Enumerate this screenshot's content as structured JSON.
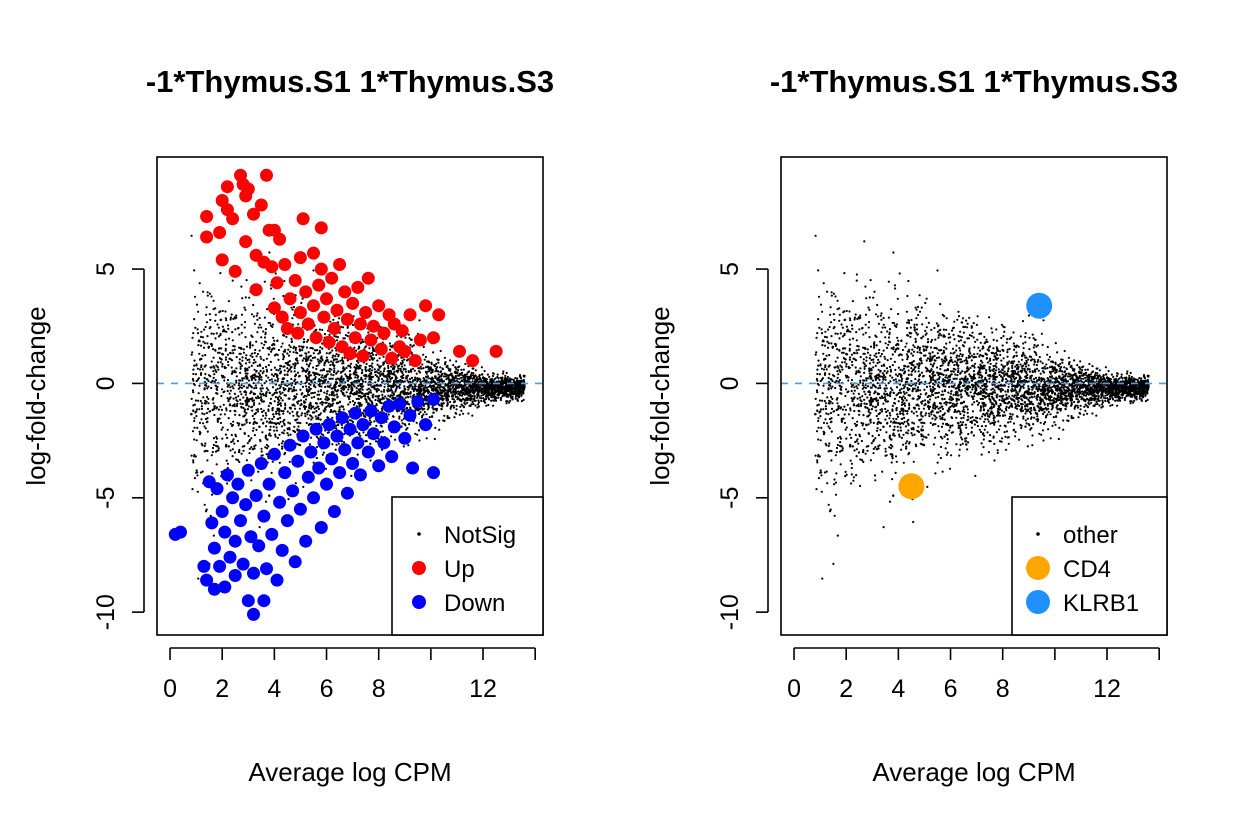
{
  "colors": {
    "notsig": "#000000",
    "up": "#ff0000",
    "down": "#0000ff",
    "cd4": "#ffa500",
    "klrb1": "#1e90ff",
    "zero_line": "#4e9ddb"
  },
  "chart_data": [
    {
      "type": "scatter",
      "title": "-1*Thymus.S1 1*Thymus.S3",
      "xlabel": "Average log CPM",
      "ylabel": "log-fold-change",
      "xlim": [
        -0.5,
        14.3
      ],
      "ylim": [
        -11.0,
        9.9
      ],
      "x_ticks": [
        0,
        2,
        4,
        6,
        8,
        10,
        12,
        14
      ],
      "x_tick_labels": [
        "0",
        "2",
        "4",
        "6",
        "8",
        "",
        "12",
        ""
      ],
      "y_ticks": [
        -10,
        -5,
        0,
        5
      ],
      "y_tick_labels": [
        "-10",
        "-5",
        "0",
        "5"
      ],
      "reference_line": {
        "y": 0,
        "style": "dashed"
      },
      "legend": {
        "position": "bottom-right",
        "entries": [
          {
            "label": "NotSig",
            "color": "#000000",
            "marker": "small-dot"
          },
          {
            "label": "Up",
            "color": "#ff0000",
            "marker": "dot"
          },
          {
            "label": "Down",
            "color": "#0000ff",
            "marker": "dot"
          }
        ]
      },
      "series": [
        {
          "name": "Up",
          "marker": "dot",
          "points": [
            [
              1.4,
              7.3
            ],
            [
              1.4,
              6.4
            ],
            [
              1.9,
              6.6
            ],
            [
              2.0,
              8.0
            ],
            [
              2.0,
              5.4
            ],
            [
              2.2,
              8.6
            ],
            [
              2.2,
              7.6
            ],
            [
              2.4,
              7.2
            ],
            [
              2.5,
              4.9
            ],
            [
              2.7,
              9.1
            ],
            [
              2.8,
              8.7
            ],
            [
              2.9,
              8.2
            ],
            [
              2.9,
              6.2
            ],
            [
              3.0,
              8.5
            ],
            [
              3.2,
              7.4
            ],
            [
              3.3,
              5.6
            ],
            [
              3.3,
              4.1
            ],
            [
              3.5,
              7.8
            ],
            [
              3.6,
              5.3
            ],
            [
              3.7,
              9.1
            ],
            [
              3.8,
              6.7
            ],
            [
              3.9,
              5.1
            ],
            [
              4.0,
              6.7
            ],
            [
              4.0,
              3.3
            ],
            [
              4.1,
              4.4
            ],
            [
              4.2,
              6.3
            ],
            [
              4.3,
              2.9
            ],
            [
              4.4,
              5.2
            ],
            [
              4.5,
              2.4
            ],
            [
              4.6,
              3.7
            ],
            [
              4.8,
              4.5
            ],
            [
              4.9,
              2.2
            ],
            [
              5.0,
              5.5
            ],
            [
              5.0,
              3.1
            ],
            [
              5.1,
              7.2
            ],
            [
              5.2,
              4.0
            ],
            [
              5.3,
              2.6
            ],
            [
              5.5,
              5.7
            ],
            [
              5.5,
              3.4
            ],
            [
              5.6,
              2.0
            ],
            [
              5.7,
              4.3
            ],
            [
              5.8,
              6.8
            ],
            [
              5.8,
              5.0
            ],
            [
              5.9,
              2.9
            ],
            [
              6.0,
              3.7
            ],
            [
              6.1,
              1.8
            ],
            [
              6.2,
              4.6
            ],
            [
              6.3,
              2.4
            ],
            [
              6.4,
              3.2
            ],
            [
              6.5,
              5.2
            ],
            [
              6.6,
              1.6
            ],
            [
              6.7,
              4.0
            ],
            [
              6.8,
              2.8
            ],
            [
              6.9,
              1.3
            ],
            [
              7.0,
              3.5
            ],
            [
              7.1,
              2.0
            ],
            [
              7.2,
              4.2
            ],
            [
              7.3,
              2.6
            ],
            [
              7.4,
              1.2
            ],
            [
              7.5,
              3.1
            ],
            [
              7.6,
              4.6
            ],
            [
              7.7,
              1.9
            ],
            [
              7.8,
              2.5
            ],
            [
              8.0,
              3.4
            ],
            [
              8.1,
              1.5
            ],
            [
              8.2,
              2.2
            ],
            [
              8.4,
              3.0
            ],
            [
              8.5,
              1.1
            ],
            [
              8.6,
              2.6
            ],
            [
              8.8,
              1.6
            ],
            [
              8.9,
              2.3
            ],
            [
              9.0,
              1.4
            ],
            [
              9.2,
              3.0
            ],
            [
              9.4,
              1.0
            ],
            [
              9.6,
              1.9
            ],
            [
              9.8,
              3.4
            ],
            [
              10.1,
              2.0
            ],
            [
              10.3,
              3.0
            ],
            [
              11.1,
              1.4
            ],
            [
              11.6,
              1.0
            ],
            [
              12.5,
              1.4
            ]
          ]
        },
        {
          "name": "Down",
          "marker": "dot",
          "points": [
            [
              0.2,
              -6.6
            ],
            [
              0.4,
              -6.5
            ],
            [
              1.3,
              -8.0
            ],
            [
              1.4,
              -8.6
            ],
            [
              1.5,
              -4.3
            ],
            [
              1.6,
              -6.1
            ],
            [
              1.7,
              -9.0
            ],
            [
              1.7,
              -7.2
            ],
            [
              1.8,
              -4.6
            ],
            [
              1.9,
              -8.0
            ],
            [
              2.0,
              -5.6
            ],
            [
              2.1,
              -6.5
            ],
            [
              2.1,
              -8.9
            ],
            [
              2.2,
              -4.0
            ],
            [
              2.3,
              -7.6
            ],
            [
              2.4,
              -5.0
            ],
            [
              2.5,
              -6.9
            ],
            [
              2.5,
              -8.4
            ],
            [
              2.6,
              -4.4
            ],
            [
              2.7,
              -6.0
            ],
            [
              2.8,
              -7.9
            ],
            [
              2.9,
              -5.3
            ],
            [
              3.0,
              -9.5
            ],
            [
              3.0,
              -3.8
            ],
            [
              3.1,
              -6.7
            ],
            [
              3.2,
              -10.1
            ],
            [
              3.2,
              -8.3
            ],
            [
              3.3,
              -4.9
            ],
            [
              3.4,
              -7.1
            ],
            [
              3.5,
              -3.5
            ],
            [
              3.6,
              -5.8
            ],
            [
              3.6,
              -9.5
            ],
            [
              3.7,
              -8.1
            ],
            [
              3.8,
              -4.4
            ],
            [
              3.9,
              -6.6
            ],
            [
              4.0,
              -3.1
            ],
            [
              4.1,
              -8.6
            ],
            [
              4.2,
              -5.2
            ],
            [
              4.3,
              -7.3
            ],
            [
              4.4,
              -3.9
            ],
            [
              4.5,
              -6.0
            ],
            [
              4.6,
              -2.7
            ],
            [
              4.7,
              -4.7
            ],
            [
              4.8,
              -7.8
            ],
            [
              4.9,
              -3.4
            ],
            [
              5.0,
              -5.5
            ],
            [
              5.1,
              -2.3
            ],
            [
              5.2,
              -6.9
            ],
            [
              5.3,
              -4.1
            ],
            [
              5.4,
              -3.0
            ],
            [
              5.5,
              -5.0
            ],
            [
              5.6,
              -2.0
            ],
            [
              5.7,
              -3.7
            ],
            [
              5.8,
              -6.3
            ],
            [
              5.9,
              -2.6
            ],
            [
              6.0,
              -4.4
            ],
            [
              6.1,
              -1.8
            ],
            [
              6.2,
              -3.3
            ],
            [
              6.3,
              -5.6
            ],
            [
              6.4,
              -2.3
            ],
            [
              6.5,
              -3.9
            ],
            [
              6.6,
              -1.5
            ],
            [
              6.7,
              -2.9
            ],
            [
              6.8,
              -4.8
            ],
            [
              6.9,
              -2.0
            ],
            [
              7.0,
              -3.5
            ],
            [
              7.1,
              -1.3
            ],
            [
              7.2,
              -2.6
            ],
            [
              7.3,
              -4.0
            ],
            [
              7.4,
              -1.8
            ],
            [
              7.6,
              -3.0
            ],
            [
              7.7,
              -1.2
            ],
            [
              7.8,
              -2.2
            ],
            [
              8.0,
              -3.6
            ],
            [
              8.1,
              -1.5
            ],
            [
              8.2,
              -2.6
            ],
            [
              8.4,
              -1.0
            ],
            [
              8.5,
              -3.2
            ],
            [
              8.6,
              -1.9
            ],
            [
              8.8,
              -0.9
            ],
            [
              9.0,
              -2.4
            ],
            [
              9.2,
              -1.4
            ],
            [
              9.3,
              -3.7
            ],
            [
              9.5,
              -0.8
            ],
            [
              9.8,
              -1.8
            ],
            [
              10.1,
              -0.7
            ],
            [
              10.1,
              -3.9
            ]
          ]
        },
        {
          "name": "NotSig",
          "marker": "small-dot",
          "description": "dense cloud of non-significant genes centered near 0, wide spread at low CPM (roughly -9 to 8 at CPM 1-4) narrowing toward high CPM (near 0 at CPM 10-14)"
        }
      ]
    },
    {
      "type": "scatter",
      "title": "-1*Thymus.S1 1*Thymus.S3",
      "xlabel": "Average log CPM",
      "ylabel": "log-fold-change",
      "xlim": [
        -0.5,
        14.3
      ],
      "ylim": [
        -11.0,
        9.9
      ],
      "x_ticks": [
        0,
        2,
        4,
        6,
        8,
        10,
        12,
        14
      ],
      "x_tick_labels": [
        "0",
        "2",
        "4",
        "6",
        "8",
        "",
        "12",
        ""
      ],
      "y_ticks": [
        -10,
        -5,
        0,
        5
      ],
      "y_tick_labels": [
        "-10",
        "-5",
        "0",
        "5"
      ],
      "reference_line": {
        "y": 0,
        "style": "dashed"
      },
      "legend": {
        "position": "bottom-right",
        "entries": [
          {
            "label": "other",
            "color": "#000000",
            "marker": "small-dot"
          },
          {
            "label": "CD4",
            "color": "#ffa500",
            "marker": "large-dot"
          },
          {
            "label": "KLRB1",
            "color": "#1e90ff",
            "marker": "large-dot"
          }
        ]
      },
      "series": [
        {
          "name": "CD4",
          "marker": "large-dot",
          "points": [
            [
              4.5,
              -4.5
            ]
          ]
        },
        {
          "name": "KLRB1",
          "marker": "large-dot",
          "points": [
            [
              9.4,
              3.4
            ]
          ]
        },
        {
          "name": "other",
          "marker": "small-dot",
          "description": "all genes as small black dots, dense cloud centered near 0, wide spread at low CPM narrowing at high CPM"
        }
      ]
    }
  ],
  "panels": [
    {
      "title": "-1*Thymus.S1 1*Thymus.S3",
      "xlabel": "Average log CPM",
      "ylabel": "log-fold-change",
      "legend_labels": [
        "NotSig",
        "Up",
        "Down"
      ]
    },
    {
      "title": "-1*Thymus.S1 1*Thymus.S3",
      "xlabel": "Average log CPM",
      "ylabel": "log-fold-change",
      "legend_labels": [
        "other",
        "CD4",
        "KLRB1"
      ]
    }
  ]
}
